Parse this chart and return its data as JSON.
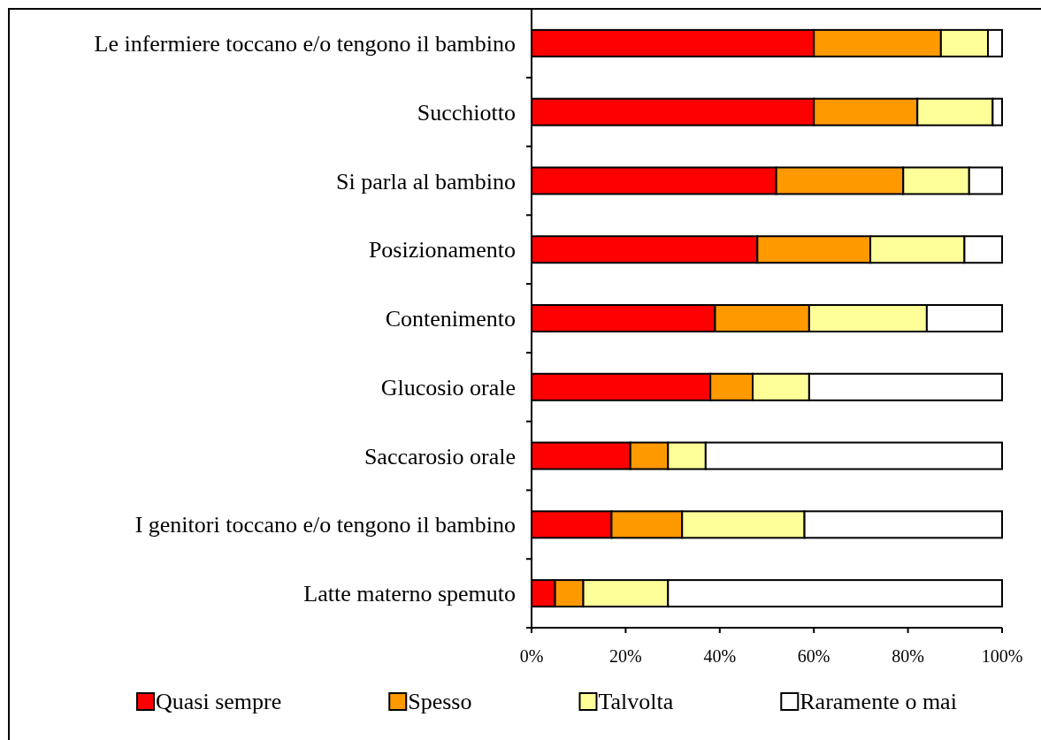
{
  "chart_data": {
    "type": "bar",
    "orientation": "horizontal",
    "stacked": true,
    "categories": [
      "Le infermiere toccano e/o tengono il bambino",
      "Succhiotto",
      "Si parla al bambino",
      "Posizionamento",
      "Contenimento",
      "Glucosio orale",
      "Saccarosio orale",
      "I genitori toccano e/o tengono il bambino",
      "Latte materno spemuto"
    ],
    "series": [
      {
        "name": "Quasi sempre",
        "color": "#ff0000",
        "values": [
          60,
          60,
          52,
          48,
          39,
          38,
          21,
          17,
          5
        ]
      },
      {
        "name": "Spesso",
        "color": "#ff9900",
        "values": [
          27,
          22,
          27,
          24,
          20,
          9,
          8,
          15,
          6
        ]
      },
      {
        "name": "Talvolta",
        "color": "#ffff99",
        "values": [
          10,
          16,
          14,
          20,
          25,
          12,
          8,
          26,
          18
        ]
      },
      {
        "name": "Raramente o mai",
        "color": "#ffffff",
        "values": [
          3,
          2,
          7,
          8,
          16,
          41,
          63,
          42,
          71
        ]
      }
    ],
    "xlim": [
      0,
      100
    ],
    "xticks": [
      {
        "value": 0,
        "label": "0%"
      },
      {
        "value": 20,
        "label": "20%"
      },
      {
        "value": 40,
        "label": "40%"
      },
      {
        "value": 60,
        "label": "60%"
      },
      {
        "value": 80,
        "label": "80%"
      },
      {
        "value": 100,
        "label": "100%"
      }
    ],
    "legend": "bottom",
    "grid": false
  }
}
